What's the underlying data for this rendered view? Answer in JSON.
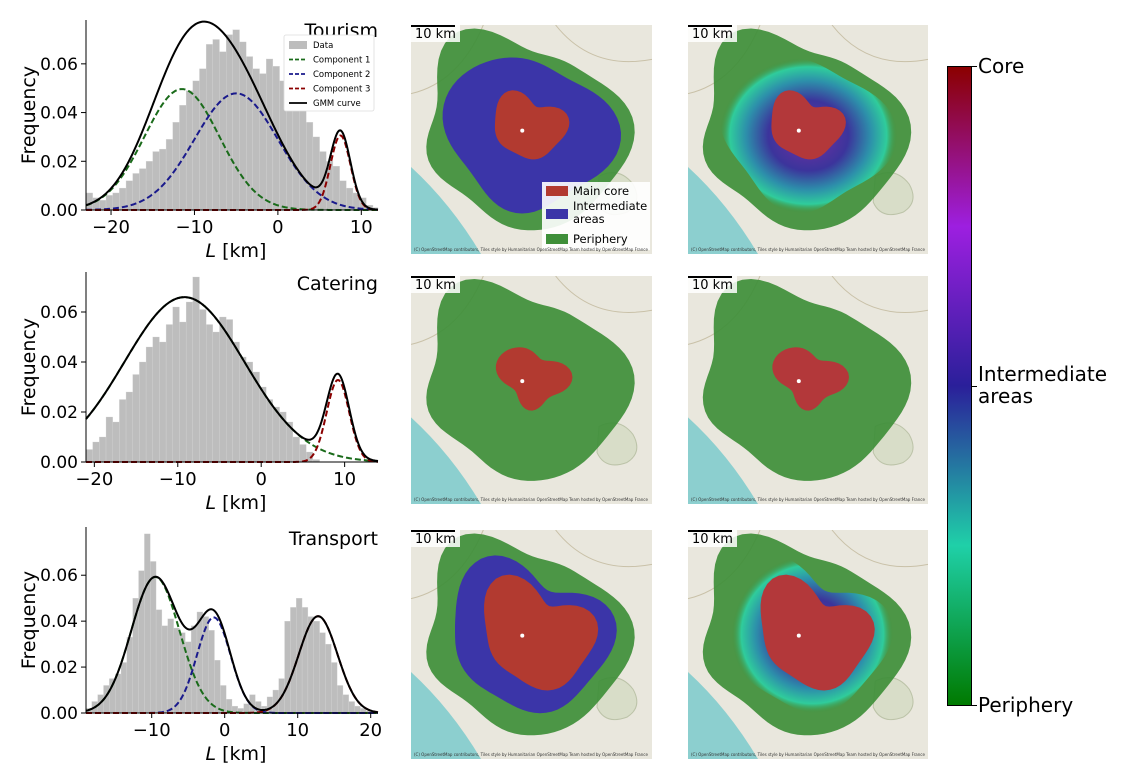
{
  "panels": [
    {
      "name": "tourism",
      "title": "Tourism",
      "map_scale_label": "10 km",
      "map_attribution": "(C) OpenStreetMap contributors, Tiles style by Humanitarian OpenStreetMap Team hosted by OpenStreetMap France"
    },
    {
      "name": "catering",
      "title": "Catering",
      "map_scale_label": "10 km",
      "map_attribution": "(C) OpenStreetMap contributors, Tiles style by Humanitarian OpenStreetMap Team hosted by OpenStreetMap France"
    },
    {
      "name": "transport",
      "title": "Transport",
      "map_scale_label": "10 km",
      "map_attribution": "(C) OpenStreetMap contributors, Tiles style by Humanitarian OpenStreetMap Team hosted by OpenStreetMap France"
    }
  ],
  "map_legend": {
    "items": [
      {
        "label": "Main core",
        "color": "#b23a30"
      },
      {
        "label": "Intermediate areas",
        "color": "#3b35a8"
      },
      {
        "label": "Periphery",
        "color": "#3f8f3a"
      }
    ]
  },
  "colorbar": {
    "top_label": "Core",
    "middle_label_line1": "Intermediate",
    "middle_label_line2": "areas",
    "bottom_label": "Periphery",
    "colors": [
      "#8b0000",
      "#9d1fe0",
      "#2a1f9a",
      "#1fd0a8",
      "#007a00"
    ]
  },
  "colors": {
    "histogram": "#bdbdbd",
    "gmm": "#000000",
    "component_1": "#1a6b1a",
    "component_2": "#1a1a8c",
    "component_3": "#8b0000",
    "core": "#b23a30",
    "intermediate": "#3b35a8",
    "periphery": "#3f8f3a",
    "water": "#8ccfcf"
  },
  "chart_data": [
    {
      "type": "histogram",
      "title": "Tourism",
      "xlabel": "L [km]",
      "ylabel": "Frequency",
      "xlim": [
        -23,
        12
      ],
      "ylim": [
        0,
        0.078
      ],
      "xticks": [
        -20,
        -10,
        0,
        10
      ],
      "xtick_labels": [
        "−20",
        "−10",
        "0",
        "10"
      ],
      "yticks": [
        0.0,
        0.02,
        0.04,
        0.06
      ],
      "ytick_labels": [
        "0.00",
        "0.02",
        "0.04",
        "0.06"
      ],
      "legend": {
        "placement": "top-right",
        "entries": [
          "Data",
          "Component 1",
          "Component 2",
          "Component 3",
          "GMM curve"
        ]
      },
      "bin_width": 0.8,
      "bins_start": -23,
      "hist_values": [
        0.007,
        0.005,
        0.004,
        0.006,
        0.007,
        0.009,
        0.012,
        0.015,
        0.017,
        0.02,
        0.024,
        0.025,
        0.029,
        0.036,
        0.043,
        0.049,
        0.053,
        0.058,
        0.068,
        0.07,
        0.065,
        0.072,
        0.074,
        0.069,
        0.063,
        0.058,
        0.056,
        0.062,
        0.059,
        0.053,
        0.049,
        0.045,
        0.041,
        0.036,
        0.03,
        0.024,
        0.02,
        0.018,
        0.012,
        0.009,
        0.007,
        0.005,
        0.002,
        0.001,
        0.0
      ],
      "components": [
        {
          "name": "Component 1",
          "weight": 0.56,
          "mean": -11.5,
          "sd": 4.5
        },
        {
          "name": "Component 2",
          "weight": 0.6,
          "mean": -5.0,
          "sd": 5.0
        },
        {
          "name": "Component 3",
          "weight": 0.092,
          "mean": 7.5,
          "sd": 1.2
        }
      ]
    },
    {
      "type": "histogram",
      "title": "Catering",
      "xlabel": "L [km]",
      "ylabel": "Frequency",
      "xlim": [
        -21,
        14
      ],
      "ylim": [
        0,
        0.076
      ],
      "xticks": [
        -20,
        -10,
        0,
        10
      ],
      "xtick_labels": [
        "−20",
        "−10",
        "0",
        "10"
      ],
      "yticks": [
        0.0,
        0.02,
        0.04,
        0.06
      ],
      "ytick_labels": [
        "0.00",
        "0.02",
        "0.04",
        "0.06"
      ],
      "bin_width": 0.8,
      "bins_start": -21,
      "hist_values": [
        0.005,
        0.008,
        0.01,
        0.018,
        0.016,
        0.025,
        0.028,
        0.035,
        0.04,
        0.046,
        0.05,
        0.048,
        0.055,
        0.062,
        0.056,
        0.064,
        0.074,
        0.061,
        0.055,
        0.052,
        0.058,
        0.057,
        0.048,
        0.042,
        0.04,
        0.036,
        0.03,
        0.025,
        0.022,
        0.02,
        0.016,
        0.01,
        0.007,
        0.004,
        0.001,
        0.0,
        0.0,
        0.0,
        0.0,
        0.0,
        0.0,
        0.0,
        0.0,
        0.0
      ],
      "components": [
        {
          "name": "Component 1",
          "weight": 1.19,
          "mean": -9.2,
          "sd": 7.2
        },
        {
          "name": "Component 3",
          "weight": 0.111,
          "mean": 9.2,
          "sd": 1.35
        }
      ]
    },
    {
      "type": "histogram",
      "title": "Transport",
      "xlabel": "L [km]",
      "ylabel": "Frequency",
      "xlim": [
        -19,
        21
      ],
      "ylim": [
        0,
        0.081
      ],
      "xticks": [
        -10,
        0,
        10,
        20
      ],
      "xtick_labels": [
        "−10",
        "0",
        "10",
        "20"
      ],
      "yticks": [
        0.0,
        0.02,
        0.04,
        0.06
      ],
      "ytick_labels": [
        "0.00",
        "0.02",
        "0.04",
        "0.06"
      ],
      "bin_width": 0.8,
      "bins_start": -19,
      "hist_values": [
        0.002,
        0.005,
        0.008,
        0.012,
        0.015,
        0.017,
        0.022,
        0.033,
        0.05,
        0.062,
        0.078,
        0.066,
        0.045,
        0.038,
        0.041,
        0.037,
        0.035,
        0.031,
        0.038,
        0.044,
        0.042,
        0.036,
        0.023,
        0.012,
        0.006,
        0.003,
        0.002,
        0.004,
        0.008,
        0.005,
        0.003,
        0.007,
        0.01,
        0.015,
        0.04,
        0.046,
        0.05,
        0.046,
        0.042,
        0.04,
        0.035,
        0.03,
        0.022,
        0.012,
        0.008,
        0.005,
        0.003,
        0.002,
        0.001,
        0.0
      ],
      "components": [
        {
          "name": "Component 1",
          "weight": 0.49,
          "mean": -9.5,
          "sd": 3.3
        },
        {
          "name": "Component 2",
          "weight": 0.24,
          "mean": -1.5,
          "sd": 2.3
        },
        {
          "name": "Component 3",
          "weight": 0.28,
          "mean": 12.8,
          "sd": 2.65
        }
      ]
    }
  ]
}
